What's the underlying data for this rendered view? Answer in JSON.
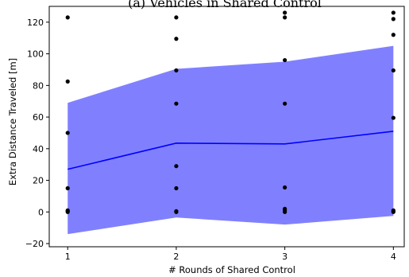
{
  "chart_data": {
    "type": "line",
    "title": "(a) Vehicles in Shared Control",
    "xlabel": "# Rounds of Shared Control",
    "ylabel": "Extra Distance Traveled [m]",
    "xlim": [
      0.83,
      4.1
    ],
    "ylim": [
      -22,
      130
    ],
    "xticks": [
      1,
      2,
      3,
      4
    ],
    "yticks": [
      -20,
      0,
      20,
      40,
      60,
      80,
      100,
      120
    ],
    "grid": false,
    "mean_line": {
      "color": "#0000ff",
      "x": [
        1,
        2,
        3,
        4
      ],
      "y": [
        27,
        43.5,
        43,
        51
      ]
    },
    "band": {
      "color": "#8080ff",
      "x": [
        1,
        2,
        3,
        4
      ],
      "upper": [
        69,
        90.5,
        95,
        105
      ],
      "lower": [
        -14,
        -3.5,
        -8,
        -2.5
      ]
    },
    "scatter": {
      "color": "#000000",
      "points": [
        [
          1,
          123
        ],
        [
          1,
          82.5
        ],
        [
          1,
          50
        ],
        [
          1,
          15
        ],
        [
          1,
          1
        ],
        [
          1,
          0.5
        ],
        [
          1,
          0
        ],
        [
          2,
          123
        ],
        [
          2,
          109.5
        ],
        [
          2,
          89.5
        ],
        [
          2,
          68.5
        ],
        [
          2,
          29
        ],
        [
          2,
          15
        ],
        [
          2,
          0.5
        ],
        [
          2,
          0
        ],
        [
          3,
          126
        ],
        [
          3,
          123
        ],
        [
          3,
          96
        ],
        [
          3,
          68.5
        ],
        [
          3,
          15.5
        ],
        [
          3,
          2
        ],
        [
          3,
          1
        ],
        [
          3,
          0
        ],
        [
          4,
          126
        ],
        [
          4,
          122
        ],
        [
          4,
          112
        ],
        [
          4,
          89.5
        ],
        [
          4,
          59.5
        ],
        [
          4,
          1
        ],
        [
          4,
          0.5
        ],
        [
          4,
          0
        ]
      ]
    }
  }
}
